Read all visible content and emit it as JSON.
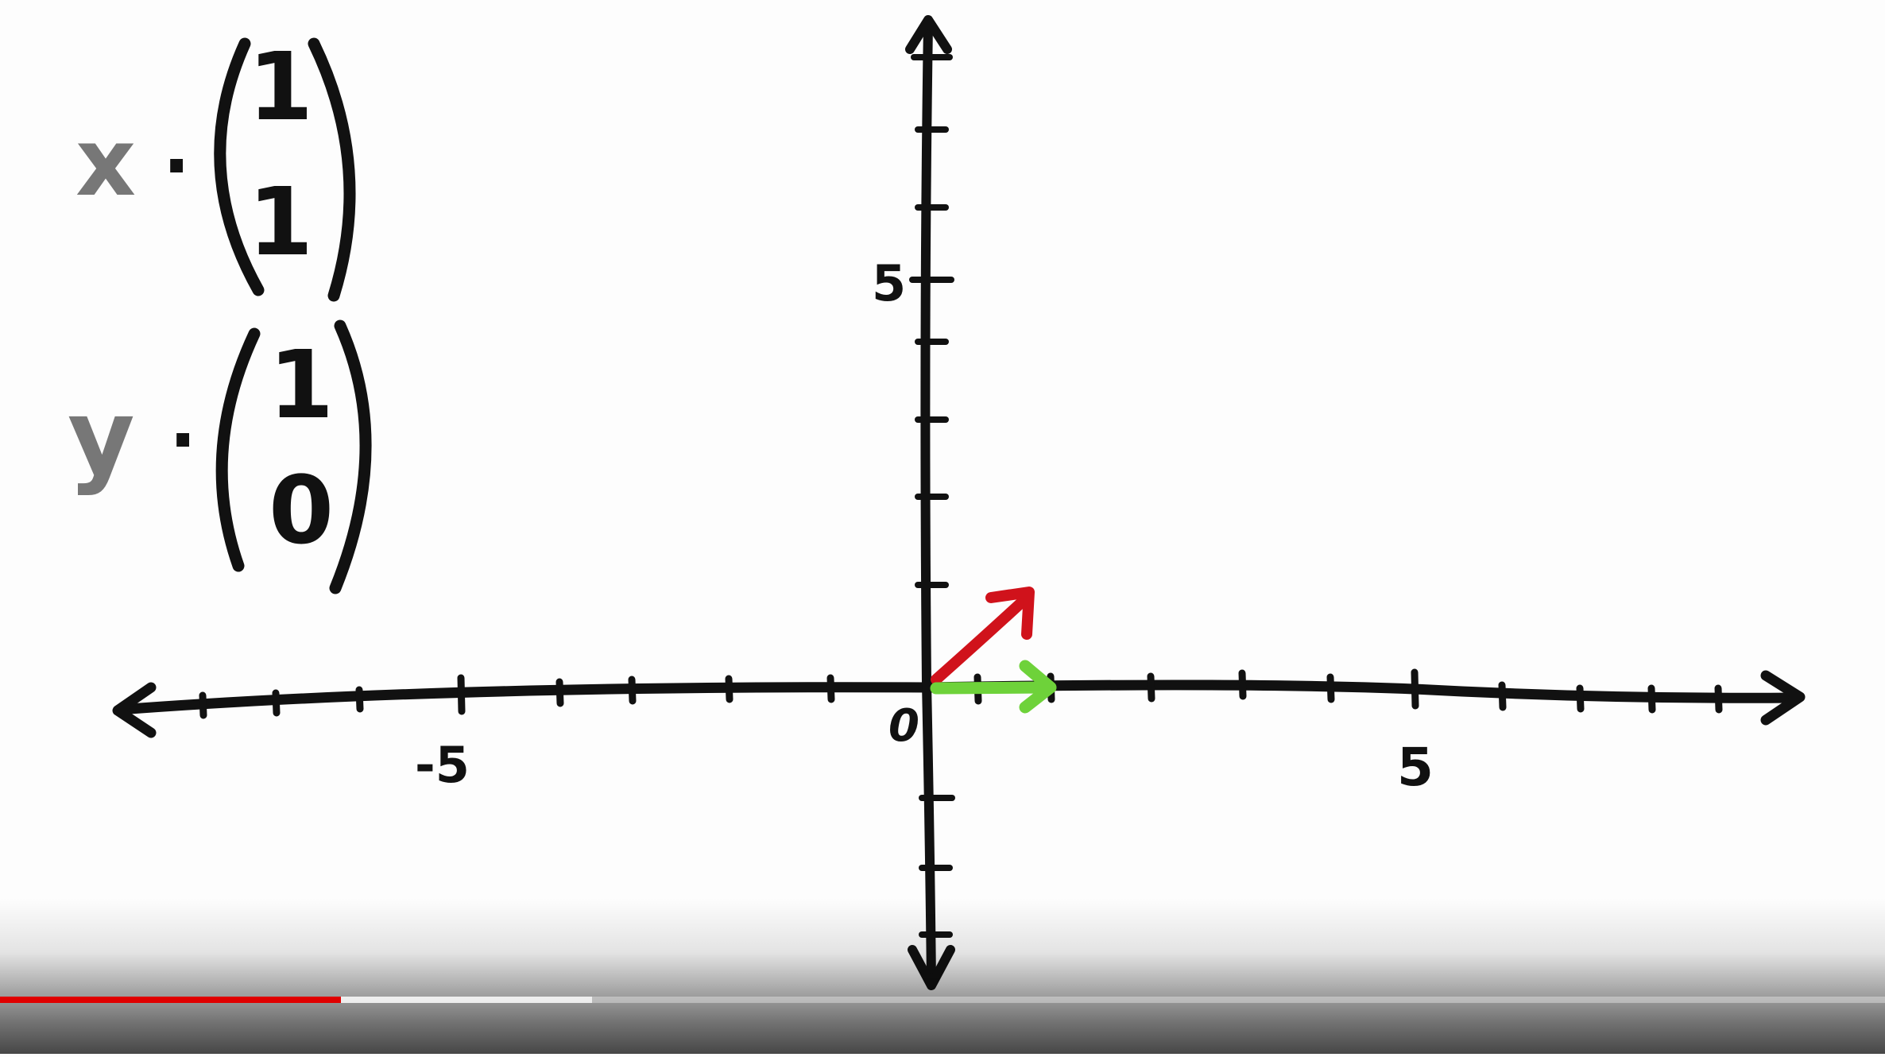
{
  "formula": {
    "term1": {
      "variable": "x",
      "operator": "·",
      "vector": [
        "1",
        "1"
      ]
    },
    "term2": {
      "variable": "y",
      "operator": "·",
      "vector": [
        "1",
        "0"
      ]
    }
  },
  "axes": {
    "origin_label": "0",
    "x_tick_labels": [
      "-5",
      "5"
    ],
    "y_tick_labels": [
      "5"
    ]
  },
  "vectors": [
    {
      "name": "red-vector",
      "from": [
        0,
        0
      ],
      "to": [
        1,
        1
      ],
      "color": "#d0121b"
    },
    {
      "name": "green-vector",
      "from": [
        0,
        0
      ],
      "to": [
        1,
        0
      ],
      "color": "#6ed23a"
    }
  ],
  "colors": {
    "ink": "#111111",
    "pencil_gray": "#777777",
    "played": "#e00000"
  },
  "player": {
    "progress_played": 0.181,
    "progress_buffered": 0.314
  }
}
